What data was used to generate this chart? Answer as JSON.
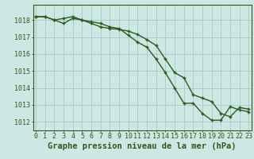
{
  "title": "Graphe pression niveau de la mer (hPa)",
  "background_color": "#cde8e4",
  "line_color": "#2d5a1b",
  "grid_color": "#aacfca",
  "hours": [
    0,
    1,
    2,
    3,
    4,
    5,
    6,
    7,
    8,
    9,
    10,
    11,
    12,
    13,
    14,
    15,
    16,
    17,
    18,
    19,
    20,
    21,
    22,
    23
  ],
  "series1": [
    1018.2,
    1018.2,
    1018.0,
    1018.1,
    1018.2,
    1018.0,
    1017.9,
    1017.8,
    1017.6,
    1017.5,
    1017.1,
    1016.7,
    1016.4,
    1015.7,
    1014.9,
    1014.0,
    1013.1,
    1013.1,
    1012.5,
    1012.1,
    1012.1,
    1012.9,
    1012.7,
    1012.6
  ],
  "series2": [
    1018.2,
    1018.2,
    1018.0,
    1017.8,
    1018.1,
    1018.0,
    1017.8,
    1017.6,
    1017.5,
    1017.45,
    1017.35,
    1017.15,
    1016.85,
    1016.5,
    1015.7,
    1014.9,
    1014.6,
    1013.6,
    1013.4,
    1013.2,
    1012.5,
    1012.3,
    1012.85,
    1012.75
  ],
  "ylim_min": 1011.5,
  "ylim_max": 1018.9,
  "yticks": [
    1012,
    1013,
    1014,
    1015,
    1016,
    1017,
    1018
  ],
  "title_fontsize": 7.5,
  "tick_fontsize": 6.0
}
